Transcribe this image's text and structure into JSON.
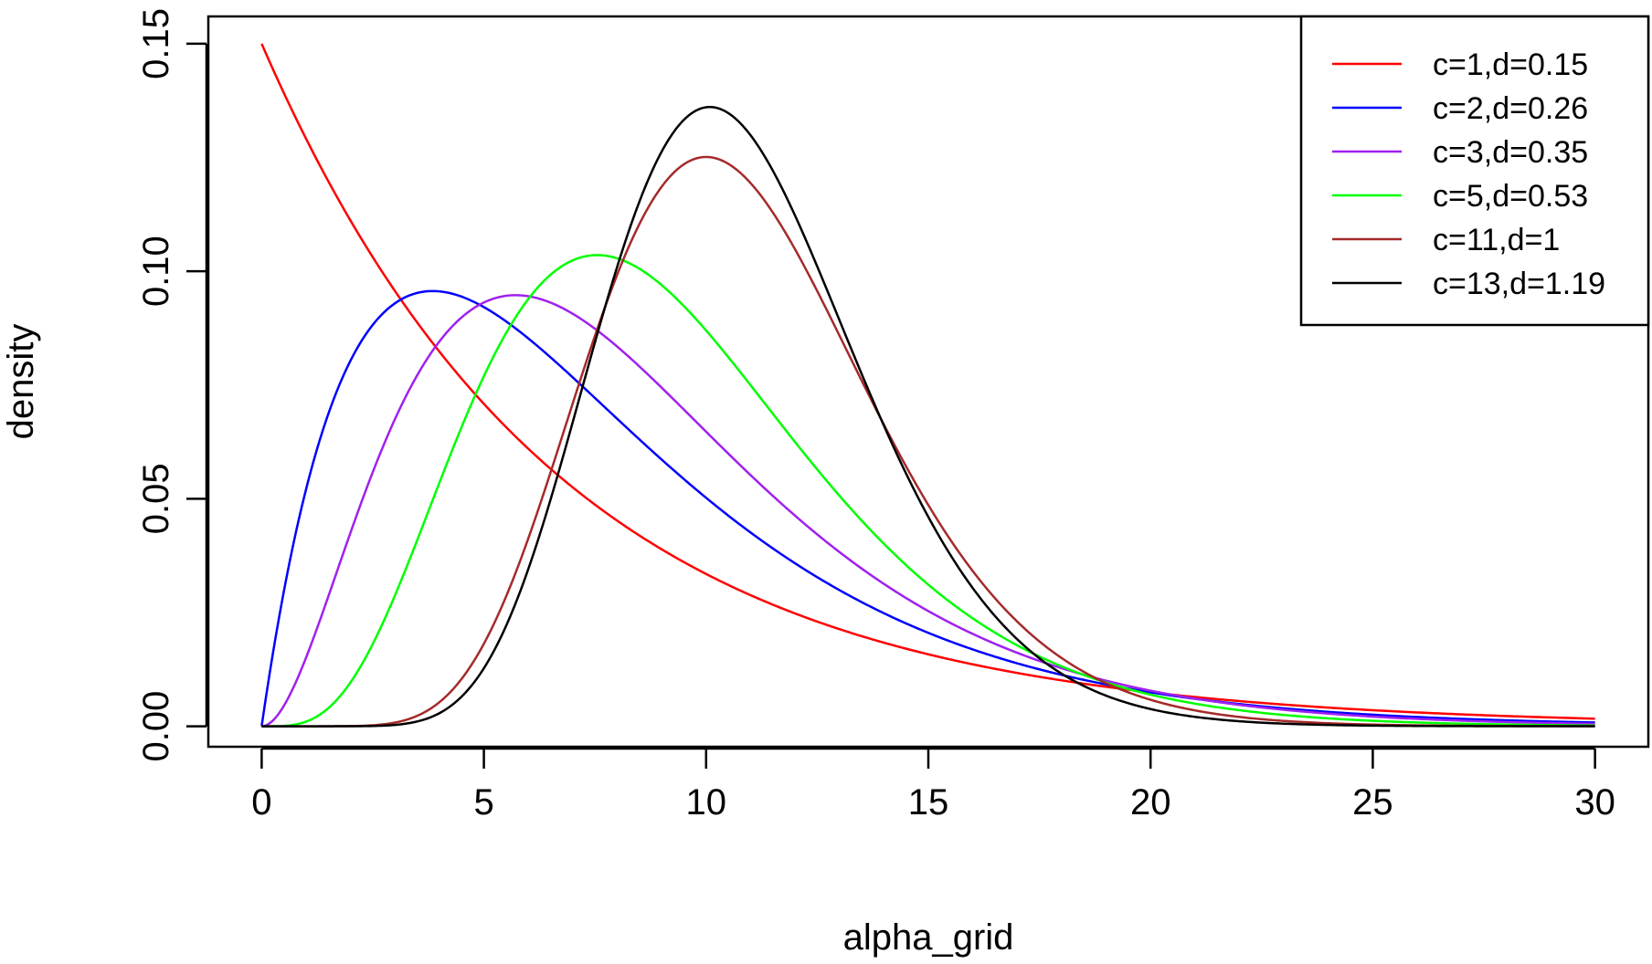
{
  "chart_data": {
    "type": "line",
    "title": "",
    "xlabel": "alpha_grid",
    "ylabel": "density",
    "xlim": [
      -1.2,
      31.2
    ],
    "ylim": [
      -0.0045,
      0.156
    ],
    "xticks": [
      0,
      5,
      10,
      15,
      20,
      25,
      30
    ],
    "xtick_labels": [
      "0",
      "5",
      "10",
      "15",
      "20",
      "25",
      "30"
    ],
    "yticks": [
      0,
      0.05,
      0.1,
      0.15
    ],
    "ytick_labels": [
      "0.00",
      "0.05",
      "0.10",
      "0.15"
    ],
    "grid": false,
    "legend_position": "top-right",
    "x_range": [
      0,
      30
    ],
    "series": [
      {
        "name": "c=1,d=0.15",
        "color": "#ff0000",
        "shape": 1,
        "rate": 0.15
      },
      {
        "name": "c=2,d=0.26",
        "color": "#0000ff",
        "shape": 2,
        "rate": 0.26
      },
      {
        "name": "c=3,d=0.35",
        "color": "#a020f0",
        "shape": 3,
        "rate": 0.35
      },
      {
        "name": "c=5,d=0.53",
        "color": "#00ff00",
        "shape": 5,
        "rate": 0.53
      },
      {
        "name": "c=11,d=1",
        "color": "#a52a2a",
        "shape": 11,
        "rate": 1
      },
      {
        "name": "c=13,d=1.19",
        "color": "#000000",
        "shape": 13,
        "rate": 1.19
      }
    ]
  }
}
